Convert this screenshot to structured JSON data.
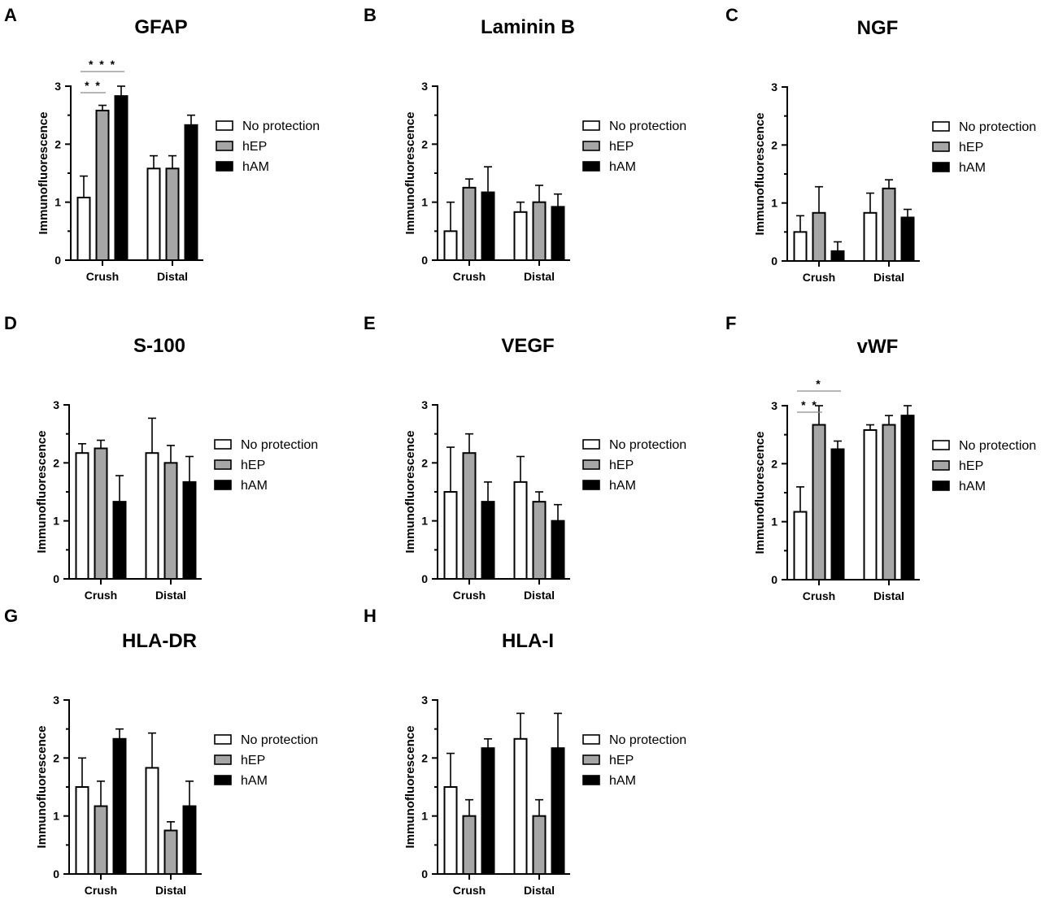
{
  "chart_data": [
    {
      "panel": "A",
      "type": "bar",
      "title": "GFAP",
      "ylabel": "Immunofluorescence",
      "ylim": [
        0,
        3
      ],
      "yticks": [
        0,
        1,
        2,
        3
      ],
      "categories": [
        "Crush",
        "Distal"
      ],
      "series": [
        {
          "name": "No protection",
          "values": [
            1.08,
            1.58
          ],
          "error": [
            0.37,
            0.22
          ]
        },
        {
          "name": "hEP",
          "values": [
            2.58,
            1.58
          ],
          "error": [
            0.09,
            0.22
          ]
        },
        {
          "name": "hAM",
          "values": [
            2.83,
            2.33
          ],
          "error": [
            0.17,
            0.17
          ]
        }
      ],
      "significance": [
        {
          "category": "Crush",
          "from": "No protection",
          "to": "hEP",
          "label": "* *"
        },
        {
          "category": "Crush",
          "from": "No protection",
          "to": "hAM",
          "label": "* * *"
        }
      ]
    },
    {
      "panel": "B",
      "type": "bar",
      "title": "Laminin B",
      "ylabel": "Immunofluorescence",
      "ylim": [
        0,
        3
      ],
      "yticks": [
        0,
        1,
        2,
        3
      ],
      "categories": [
        "Crush",
        "Distal"
      ],
      "series": [
        {
          "name": "No protection",
          "values": [
            0.5,
            0.83
          ],
          "error": [
            0.5,
            0.17
          ]
        },
        {
          "name": "hEP",
          "values": [
            1.25,
            1.0
          ],
          "error": [
            0.15,
            0.29
          ]
        },
        {
          "name": "hAM",
          "values": [
            1.17,
            0.92
          ],
          "error": [
            0.44,
            0.22
          ]
        }
      ],
      "significance": []
    },
    {
      "panel": "C",
      "type": "bar",
      "title": "NGF",
      "ylabel": "Immunofluorescence",
      "ylim": [
        0,
        3
      ],
      "yticks": [
        0,
        1,
        2,
        3
      ],
      "categories": [
        "Crush",
        "Distal"
      ],
      "series": [
        {
          "name": "No protection",
          "values": [
            0.5,
            0.83
          ],
          "error": [
            0.28,
            0.34
          ]
        },
        {
          "name": "hEP",
          "values": [
            0.83,
            1.25
          ],
          "error": [
            0.45,
            0.15
          ]
        },
        {
          "name": "hAM",
          "values": [
            0.17,
            0.75
          ],
          "error": [
            0.16,
            0.14
          ]
        }
      ],
      "significance": []
    },
    {
      "panel": "D",
      "type": "bar",
      "title": "S-100",
      "ylabel": "Immunofluorescence",
      "ylim": [
        0,
        3
      ],
      "yticks": [
        0,
        1,
        2,
        3
      ],
      "categories": [
        "Crush",
        "Distal"
      ],
      "series": [
        {
          "name": "No protection",
          "values": [
            2.17,
            2.17
          ],
          "error": [
            0.16,
            0.6
          ]
        },
        {
          "name": "hEP",
          "values": [
            2.25,
            2.0
          ],
          "error": [
            0.14,
            0.3
          ]
        },
        {
          "name": "hAM",
          "values": [
            1.33,
            1.67
          ],
          "error": [
            0.45,
            0.44
          ]
        }
      ],
      "significance": []
    },
    {
      "panel": "E",
      "type": "bar",
      "title": "VEGF",
      "ylabel": "Immunofluorescence",
      "ylim": [
        0,
        3
      ],
      "yticks": [
        0,
        1,
        2,
        3
      ],
      "categories": [
        "Crush",
        "Distal"
      ],
      "series": [
        {
          "name": "No protection",
          "values": [
            1.5,
            1.67
          ],
          "error": [
            0.77,
            0.44
          ]
        },
        {
          "name": "hEP",
          "values": [
            2.17,
            1.33
          ],
          "error": [
            0.33,
            0.17
          ]
        },
        {
          "name": "hAM",
          "values": [
            1.33,
            1.0
          ],
          "error": [
            0.34,
            0.28
          ]
        }
      ],
      "significance": []
    },
    {
      "panel": "F",
      "type": "bar",
      "title": "vWF",
      "ylabel": "Immunofluorescence",
      "ylim": [
        0,
        3
      ],
      "yticks": [
        0,
        1,
        2,
        3
      ],
      "categories": [
        "Crush",
        "Distal"
      ],
      "series": [
        {
          "name": "No protection",
          "values": [
            1.17,
            2.58
          ],
          "error": [
            0.43,
            0.09
          ]
        },
        {
          "name": "hEP",
          "values": [
            2.67,
            2.67
          ],
          "error": [
            0.33,
            0.16
          ]
        },
        {
          "name": "hAM",
          "values": [
            2.25,
            2.83
          ],
          "error": [
            0.14,
            0.17
          ]
        }
      ],
      "significance": [
        {
          "category": "Crush",
          "from": "No protection",
          "to": "hEP",
          "label": "* *"
        },
        {
          "category": "Crush",
          "from": "No protection",
          "to": "hAM",
          "label": "*"
        }
      ]
    },
    {
      "panel": "G",
      "type": "bar",
      "title": "HLA-DR",
      "ylabel": "Immunofluorescence",
      "ylim": [
        0,
        3
      ],
      "yticks": [
        0,
        1,
        2,
        3
      ],
      "categories": [
        "Crush",
        "Distal"
      ],
      "series": [
        {
          "name": "No protection",
          "values": [
            1.5,
            1.83
          ],
          "error": [
            0.5,
            0.6
          ]
        },
        {
          "name": "hEP",
          "values": [
            1.17,
            0.75
          ],
          "error": [
            0.43,
            0.15
          ]
        },
        {
          "name": "hAM",
          "values": [
            2.33,
            1.17
          ],
          "error": [
            0.17,
            0.43
          ]
        }
      ],
      "significance": []
    },
    {
      "panel": "H",
      "type": "bar",
      "title": "HLA-I",
      "ylabel": "Immunofluorescence",
      "ylim": [
        0,
        3
      ],
      "yticks": [
        0,
        1,
        2,
        3
      ],
      "categories": [
        "Crush",
        "Distal"
      ],
      "series": [
        {
          "name": "No protection",
          "values": [
            1.5,
            2.33
          ],
          "error": [
            0.58,
            0.44
          ]
        },
        {
          "name": "hEP",
          "values": [
            1.0,
            1.0
          ],
          "error": [
            0.28,
            0.28
          ]
        },
        {
          "name": "hAM",
          "values": [
            2.17,
            2.17
          ],
          "error": [
            0.16,
            0.6
          ]
        }
      ],
      "significance": []
    }
  ],
  "colors": {
    "No protection": "#ffffff",
    "hEP": "#a6a6a6",
    "hAM": "#000000",
    "axis": "#000000",
    "significance_line": "#8c8c8c"
  }
}
